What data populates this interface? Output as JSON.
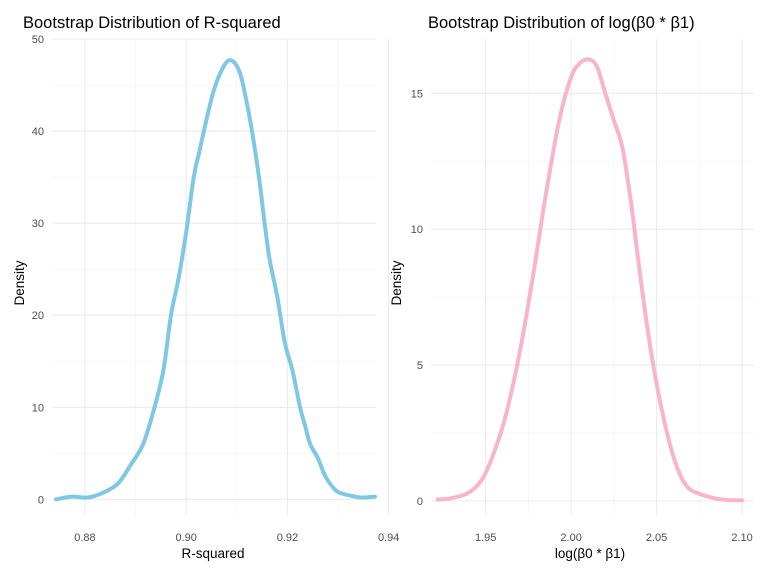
{
  "chart_data": [
    {
      "type": "line",
      "title": "Bootstrap Distribution of R-squared",
      "xlabel": "R-squared",
      "ylabel": "Density",
      "xlim": [
        0.8735,
        0.9375
      ],
      "ylim": [
        -1.7,
        50
      ],
      "x_ticks": [
        0.88,
        0.9,
        0.92,
        0.94
      ],
      "x_tick_labels": [
        "0.88",
        "0.90",
        "0.92",
        "0.94"
      ],
      "y_ticks": [
        0,
        10,
        20,
        30,
        40,
        50
      ],
      "y_tick_labels": [
        "0",
        "10",
        "20",
        "30",
        "40",
        "50"
      ],
      "grid": true,
      "color": "#7ec8e6",
      "series": [
        {
          "x": [
            0.8743,
            0.8775,
            0.8805,
            0.8835,
            0.8865,
            0.889,
            0.8915,
            0.8935,
            0.8955,
            0.897,
            0.8985,
            0.9,
            0.9015,
            0.9025,
            0.9035,
            0.905,
            0.9065,
            0.9085,
            0.9105,
            0.912,
            0.9133,
            0.9145,
            0.9155,
            0.9165,
            0.918,
            0.9195,
            0.921,
            0.9225,
            0.9235,
            0.9245,
            0.926,
            0.9275,
            0.9295,
            0.931,
            0.9325,
            0.9345,
            0.9373
          ],
          "y": [
            0,
            0.3,
            0.2,
            0.7,
            1.7,
            3.7,
            6,
            9.5,
            14,
            20,
            24,
            29,
            35,
            37.5,
            40,
            43.5,
            46,
            47.7,
            46.5,
            43,
            39,
            34.5,
            30,
            26,
            22,
            17,
            14,
            10,
            8,
            6,
            4.5,
            2.5,
            1,
            0.6,
            0.4,
            0.2,
            0.3
          ]
        }
      ]
    },
    {
      "type": "line",
      "title": "Bootstrap Distribution of log(β0 * β1)",
      "xlabel": "log(β0 * β1)",
      "ylabel": "Density",
      "xlim": [
        1.918,
        2.107
      ],
      "ylim": [
        -0.52,
        17
      ],
      "x_ticks": [
        1.95,
        2.0,
        2.05,
        2.1
      ],
      "x_tick_labels": [
        "1.95",
        "2.00",
        "2.05",
        "2.10"
      ],
      "y_ticks": [
        0,
        5,
        10,
        15
      ],
      "y_tick_labels": [
        "0",
        "5",
        "10",
        "15"
      ],
      "grid": true,
      "color": "#f9b5c8",
      "series": [
        {
          "x": [
            1.922,
            1.93,
            1.94,
            1.948,
            1.955,
            1.962,
            1.97,
            1.978,
            1.985,
            1.993,
            2.0,
            2.005,
            2.01,
            2.015,
            2.02,
            2.025,
            2.03,
            2.035,
            2.04,
            2.045,
            2.05,
            2.055,
            2.06,
            2.065,
            2.07,
            2.078,
            2.085,
            2.092,
            2.1
          ],
          "y": [
            0.05,
            0.1,
            0.3,
            0.8,
            1.8,
            3.2,
            5.5,
            8.4,
            11.2,
            14.0,
            15.6,
            16.1,
            16.25,
            16.0,
            15.0,
            14.0,
            13.0,
            11.0,
            8.5,
            6.2,
            4.3,
            2.8,
            1.6,
            0.8,
            0.4,
            0.2,
            0.08,
            0.03,
            0.02
          ]
        }
      ]
    }
  ]
}
